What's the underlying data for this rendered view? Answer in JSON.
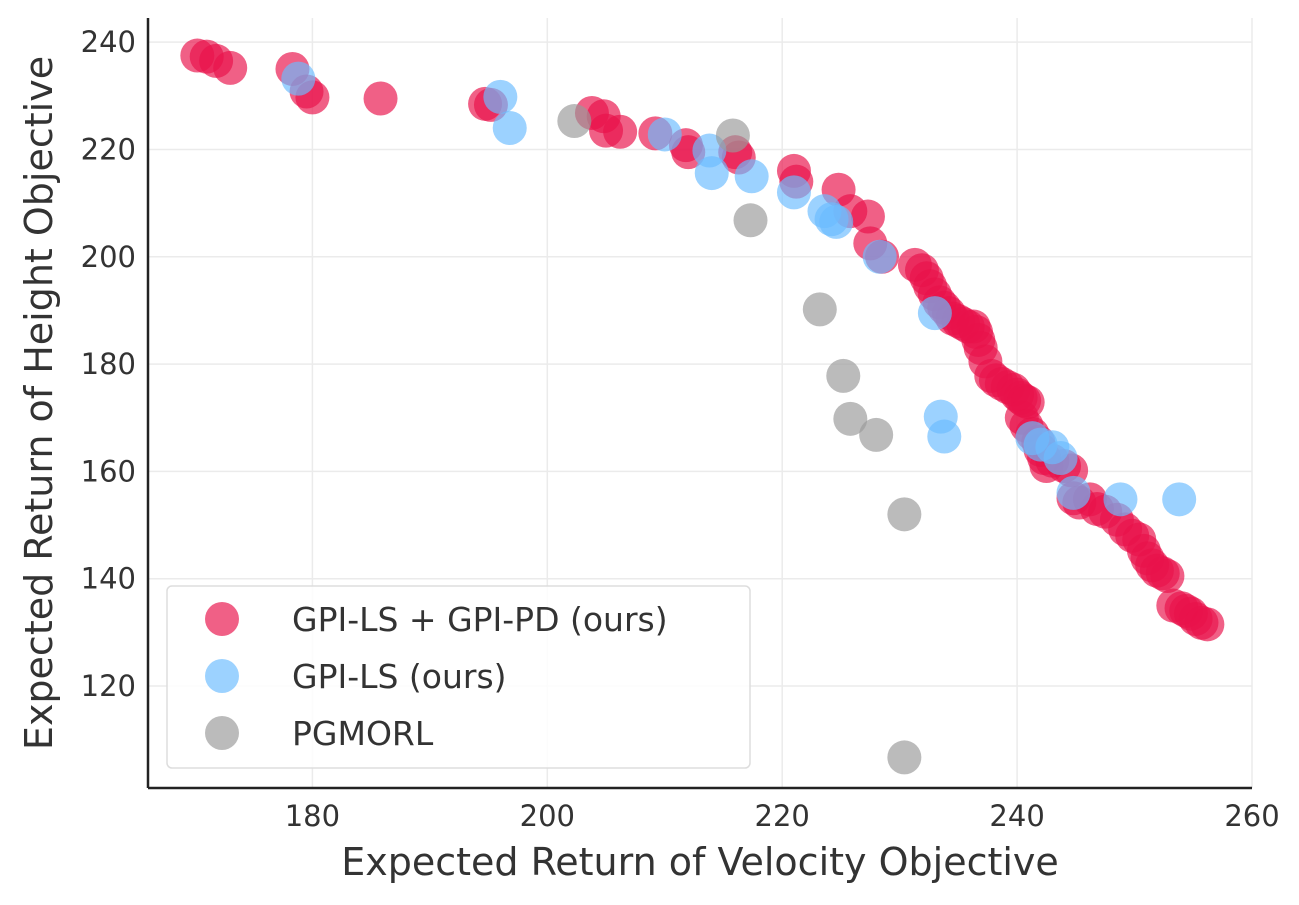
{
  "chart_data": {
    "type": "scatter",
    "xlabel": "Expected Return of Velocity Objective",
    "ylabel": "Expected Return of Height Objective",
    "xlim": [
      166,
      260
    ],
    "ylim": [
      101,
      244.5
    ],
    "x_ticks": [
      180,
      200,
      220,
      240,
      260
    ],
    "y_ticks": [
      120,
      140,
      160,
      180,
      200,
      220,
      240
    ],
    "grid": true,
    "legend_position": "lower-left",
    "series": [
      {
        "name": "GPI-LS + GPI-PD (ours)",
        "color": "#e8124a",
        "points": [
          [
            170.2,
            237.5
          ],
          [
            171.0,
            237.3
          ],
          [
            171.8,
            236.5
          ],
          [
            173.0,
            235.2
          ],
          [
            178.3,
            235.0
          ],
          [
            179.5,
            230.8
          ],
          [
            180.0,
            229.7
          ],
          [
            185.8,
            229.5
          ],
          [
            194.7,
            228.5
          ],
          [
            195.2,
            228.3
          ],
          [
            203.8,
            226.8
          ],
          [
            204.8,
            226.2
          ],
          [
            205.0,
            223.5
          ],
          [
            206.2,
            223.3
          ],
          [
            209.2,
            223.0
          ],
          [
            211.8,
            220.8
          ],
          [
            212.0,
            219.5
          ],
          [
            216.0,
            219.5
          ],
          [
            216.3,
            218.5
          ],
          [
            221.0,
            216.0
          ],
          [
            221.2,
            214.0
          ],
          [
            224.8,
            212.5
          ],
          [
            225.8,
            208.5
          ],
          [
            227.3,
            207.5
          ],
          [
            227.5,
            202.5
          ],
          [
            228.5,
            200.0
          ],
          [
            231.3,
            198.5
          ],
          [
            231.9,
            197.5
          ],
          [
            232.3,
            196.0
          ],
          [
            232.6,
            194.5
          ],
          [
            233.0,
            193.0
          ],
          [
            233.4,
            191.5
          ],
          [
            233.8,
            190.5
          ],
          [
            234.2,
            189.5
          ],
          [
            234.5,
            188.5
          ],
          [
            235.0,
            188.0
          ],
          [
            235.4,
            187.5
          ],
          [
            235.8,
            187.0
          ],
          [
            236.3,
            187.0
          ],
          [
            236.5,
            186.0
          ],
          [
            236.7,
            184.5
          ],
          [
            236.9,
            183.0
          ],
          [
            237.3,
            180.5
          ],
          [
            237.8,
            177.8
          ],
          [
            238.2,
            177.0
          ],
          [
            238.7,
            176.3
          ],
          [
            239.2,
            175.7
          ],
          [
            239.7,
            175.2
          ],
          [
            240.0,
            174.3
          ],
          [
            240.3,
            173.7
          ],
          [
            240.6,
            173.2
          ],
          [
            240.9,
            172.9
          ],
          [
            240.4,
            170.0
          ],
          [
            240.8,
            168.5
          ],
          [
            241.3,
            167.0
          ],
          [
            241.8,
            165.5
          ],
          [
            242.0,
            164.0
          ],
          [
            242.3,
            162.5
          ],
          [
            242.5,
            161.0
          ],
          [
            243.0,
            162.0
          ],
          [
            244.0,
            161.0
          ],
          [
            244.6,
            160.2
          ],
          [
            244.8,
            155.0
          ],
          [
            245.3,
            154.2
          ],
          [
            246.2,
            154.8
          ],
          [
            246.8,
            153.0
          ],
          [
            247.5,
            152.5
          ],
          [
            248.5,
            151.0
          ],
          [
            249.2,
            149.2
          ],
          [
            249.8,
            148.0
          ],
          [
            250.4,
            147.3
          ],
          [
            250.8,
            145.2
          ],
          [
            251.1,
            143.8
          ],
          [
            251.5,
            142.5
          ],
          [
            251.9,
            141.5
          ],
          [
            252.4,
            141.0
          ],
          [
            252.8,
            140.5
          ],
          [
            253.3,
            135.0
          ],
          [
            254.0,
            134.5
          ],
          [
            254.4,
            134.0
          ],
          [
            254.8,
            133.5
          ],
          [
            255.2,
            132.5
          ],
          [
            255.7,
            131.8
          ],
          [
            256.2,
            131.5
          ]
        ]
      },
      {
        "name": "GPI-LS (ours)",
        "color": "#6cbcff",
        "points": [
          [
            178.8,
            233.2
          ],
          [
            196.0,
            229.8
          ],
          [
            196.8,
            224.0
          ],
          [
            210.0,
            222.8
          ],
          [
            213.8,
            219.8
          ],
          [
            214.0,
            215.6
          ],
          [
            217.4,
            215.0
          ],
          [
            221.0,
            212.0
          ],
          [
            223.6,
            208.5
          ],
          [
            224.2,
            207.0
          ],
          [
            224.6,
            206.5
          ],
          [
            228.3,
            200.0
          ],
          [
            233.0,
            189.5
          ],
          [
            233.5,
            170.2
          ],
          [
            233.8,
            166.5
          ],
          [
            241.3,
            166.2
          ],
          [
            242.0,
            165.0
          ],
          [
            243.0,
            164.5
          ],
          [
            243.7,
            162.5
          ],
          [
            244.8,
            156.0
          ],
          [
            248.8,
            154.8
          ],
          [
            253.8,
            154.8
          ]
        ]
      },
      {
        "name": "PGMORL",
        "color": "#999999",
        "points": [
          [
            202.3,
            225.3
          ],
          [
            215.8,
            222.6
          ],
          [
            217.3,
            206.8
          ],
          [
            223.2,
            190.2
          ],
          [
            225.2,
            177.8
          ],
          [
            225.8,
            169.8
          ],
          [
            228.0,
            166.8
          ],
          [
            230.4,
            152.0
          ],
          [
            230.4,
            106.7
          ]
        ]
      }
    ]
  }
}
